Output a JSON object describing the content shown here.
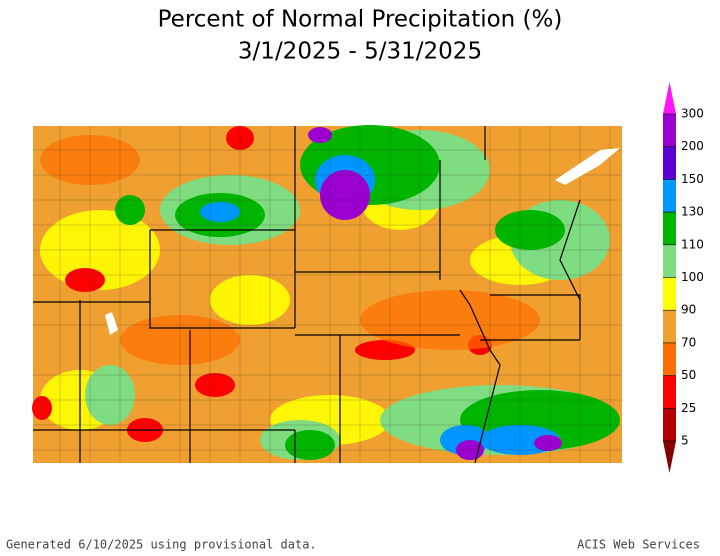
{
  "title": [
    "Percent of Normal Precipitation (%)",
    "3/1/2025 - 5/31/2025"
  ],
  "legend": {
    "ticks": [
      5,
      25,
      50,
      70,
      90,
      100,
      110,
      130,
      150,
      200,
      300
    ],
    "colors": [
      "#b40000",
      "#ff0000",
      "#ff6e00",
      "#f0a030",
      "#ffff00",
      "#80dc80",
      "#00b400",
      "#0096ff",
      "#5a00d2",
      "#9a00d0"
    ],
    "under_color": "#820000",
    "over_color": "#ff14ff"
  },
  "footer": {
    "left": "Generated 6/10/2025 using provisional data.",
    "right": "ACIS Web Services"
  }
}
